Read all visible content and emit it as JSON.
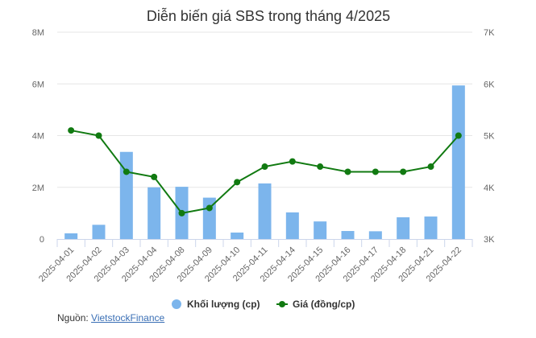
{
  "chart_data": {
    "type": "bar+line",
    "title": "Diễn biến giá SBS trong tháng 4/2025",
    "categories": [
      "2025-04-01",
      "2025-04-02",
      "2025-04-03",
      "2025-04-04",
      "2025-04-08",
      "2025-04-09",
      "2025-04-10",
      "2025-04-11",
      "2025-04-14",
      "2025-04-15",
      "2025-04-16",
      "2025-04-17",
      "2025-04-18",
      "2025-04-21",
      "2025-04-22"
    ],
    "series": [
      {
        "name": "Khối lượng (cp)",
        "type": "bar",
        "axis": "left",
        "color": "#7cb5ec",
        "values": [
          220000,
          550000,
          3370000,
          2000000,
          2020000,
          1600000,
          250000,
          2150000,
          1030000,
          680000,
          310000,
          300000,
          840000,
          870000,
          5940000
        ]
      },
      {
        "name": "Giá (đồng/cp)",
        "type": "line",
        "axis": "right",
        "color": "#117a11",
        "values": [
          5100,
          5000,
          4300,
          4200,
          3500,
          3600,
          4100,
          4400,
          4500,
          4400,
          4300,
          4300,
          4300,
          4400,
          5000
        ]
      }
    ],
    "y_left": {
      "ticks": [
        "0",
        "2M",
        "4M",
        "6M",
        "8M"
      ],
      "ylim": [
        0,
        8000000
      ]
    },
    "y_right": {
      "ticks": [
        "3K",
        "4K",
        "5K",
        "6K",
        "7K"
      ],
      "ylim": [
        3000,
        7000
      ]
    },
    "grid": true,
    "legend_position": "bottom-center"
  },
  "legend": {
    "volume_label": "Khối lượng (cp)",
    "price_label": "Giá (đồng/cp)"
  },
  "source": {
    "prefix": "Nguồn:",
    "link_text": "VietstockFinance"
  },
  "colors": {
    "bar": "#7cb5ec",
    "line": "#117a11",
    "grid": "#e6e6e6"
  }
}
